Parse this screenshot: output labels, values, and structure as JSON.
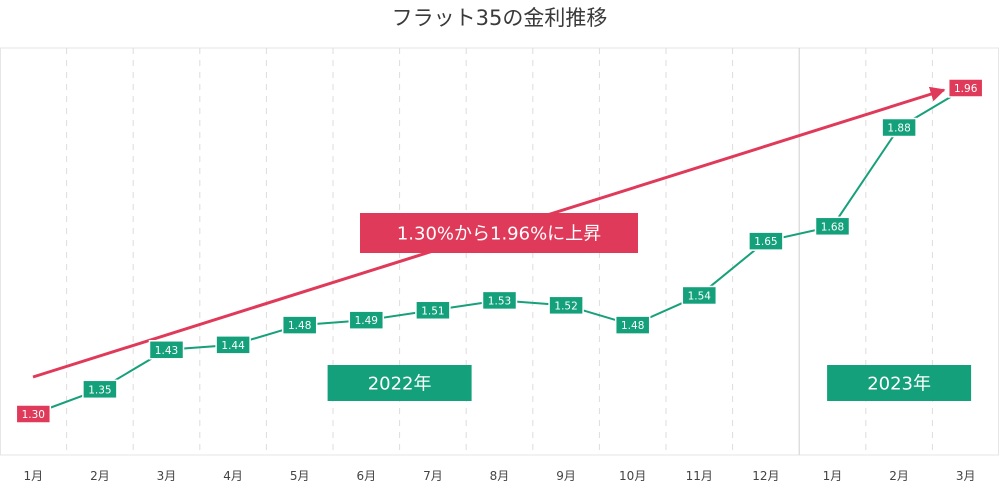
{
  "chart_data": {
    "type": "line",
    "title": "フラット35の金利推移",
    "x": [
      "1月",
      "2月",
      "3月",
      "4月",
      "5月",
      "6月",
      "7月",
      "8月",
      "9月",
      "10月",
      "11月",
      "12月",
      "1月",
      "2月",
      "3月"
    ],
    "series": [
      {
        "values": [
          1.3,
          1.35,
          1.43,
          1.44,
          1.48,
          1.49,
          1.51,
          1.53,
          1.52,
          1.48,
          1.54,
          1.65,
          1.68,
          1.88,
          1.96
        ]
      }
    ],
    "value_labels": [
      "1.30",
      "1.35",
      "1.43",
      "1.44",
      "1.48",
      "1.49",
      "1.51",
      "1.53",
      "1.52",
      "1.48",
      "1.54",
      "1.65",
      "1.68",
      "1.88",
      "1.96"
    ],
    "year_labels": [
      {
        "text": "2022年",
        "start_index": 0,
        "end_index": 11
      },
      {
        "text": "2023年",
        "start_index": 12,
        "end_index": 14
      }
    ],
    "annotation": "1.30%から1.96%に上昇",
    "grid": true,
    "ylim": [
      1.2,
      2.0
    ],
    "colors": {
      "line": "#17a07a",
      "label_bg": "#13a07a",
      "highlight": "#e03a5a",
      "grid": "#dddddd"
    }
  }
}
